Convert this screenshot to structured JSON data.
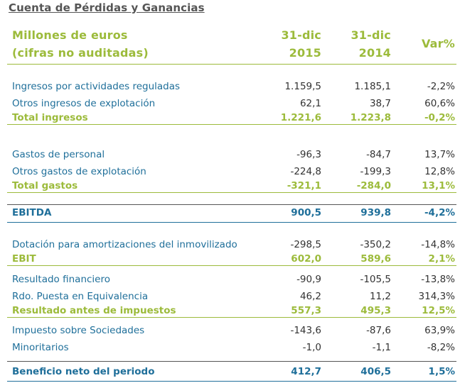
{
  "title": "Cuenta de Pérdidas y Ganancias",
  "header": {
    "label_line1": "Millones de euros",
    "label_line2": "(cifras no auditadas)",
    "col1_line1": "31-dic",
    "col1_line2": "2015",
    "col2_line1": "31-dic",
    "col2_line2": "2014",
    "col3": "Var%"
  },
  "rows": [
    {
      "label": "Ingresos por actividades reguladas",
      "v2015": "1.159,5",
      "v2014": "1.185,1",
      "var": "-2,2%"
    },
    {
      "label": "Otros ingresos de explotación",
      "v2015": "62,1",
      "v2014": "38,7",
      "var": "60,6%"
    },
    {
      "label": "Total ingresos",
      "v2015": "1.221,6",
      "v2014": "1.223,8",
      "var": "-0,2%"
    },
    {
      "label": "Gastos de personal",
      "v2015": "-96,3",
      "v2014": "-84,7",
      "var": "13,7%"
    },
    {
      "label": "Otros gastos de explotación",
      "v2015": "-224,8",
      "v2014": "-199,3",
      "var": "12,8%"
    },
    {
      "label": "Total gastos",
      "v2015": "-321,1",
      "v2014": "-284,0",
      "var": "13,1%"
    },
    {
      "label": "EBITDA",
      "v2015": "900,5",
      "v2014": "939,8",
      "var": "-4,2%"
    },
    {
      "label": "Dotación para amortizaciones del inmovilizado",
      "v2015": "-298,5",
      "v2014": "-350,2",
      "var": "-14,8%"
    },
    {
      "label": "EBIT",
      "v2015": "602,0",
      "v2014": "589,6",
      "var": "2,1%"
    },
    {
      "label": "Resultado financiero",
      "v2015": "-90,9",
      "v2014": "-105,5",
      "var": "-13,8%"
    },
    {
      "label": "Rdo. Puesta en Equivalencia",
      "v2015": "46,2",
      "v2014": "11,2",
      "var": "314,3%"
    },
    {
      "label": "Resultado antes de impuestos",
      "v2015": "557,3",
      "v2014": "495,3",
      "var": "12,5%"
    },
    {
      "label": "Impuesto sobre Sociedades",
      "v2015": "-143,6",
      "v2014": "-87,6",
      "var": "63,9%"
    },
    {
      "label": "Minoritarios",
      "v2015": "-1,0",
      "v2014": "-1,1",
      "var": "-8,2%"
    },
    {
      "label": "Beneficio neto del periodo",
      "v2015": "412,7",
      "v2014": "406,5",
      "var": "1,5%"
    }
  ],
  "colors": {
    "green": "#9cbb3b",
    "blue": "#1f6f9a",
    "grey": "#555555"
  }
}
